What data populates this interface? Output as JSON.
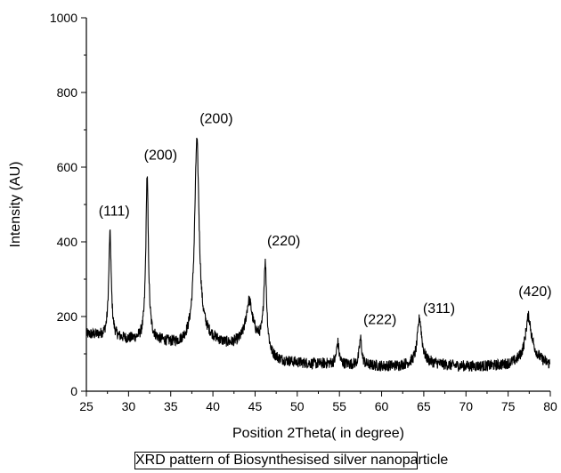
{
  "caption": "XRD pattern of  Biosynthesised silver nanoparticle",
  "chart_data": {
    "type": "line",
    "title": "",
    "xlabel": "Position 2Theta( in degree)",
    "ylabel": "Intensity (AU)",
    "xlim": [
      25,
      80
    ],
    "ylim": [
      0,
      1000
    ],
    "xticks": [
      25,
      30,
      35,
      40,
      45,
      50,
      55,
      60,
      65,
      70,
      75,
      80
    ],
    "yticks": [
      0,
      200,
      400,
      600,
      800,
      1000
    ],
    "grid": false,
    "legend": "none",
    "line_color": "#000000",
    "baseline": [
      [
        25,
        152
      ],
      [
        26,
        150
      ],
      [
        27,
        147
      ],
      [
        29,
        140
      ],
      [
        30,
        138
      ],
      [
        31,
        137
      ],
      [
        33,
        137
      ],
      [
        34,
        132
      ],
      [
        35,
        128
      ],
      [
        36,
        126
      ],
      [
        37,
        132
      ],
      [
        39,
        145
      ],
      [
        40,
        137
      ],
      [
        41,
        128
      ],
      [
        42,
        124
      ],
      [
        43,
        128
      ],
      [
        44,
        132
      ],
      [
        45,
        136
      ],
      [
        46,
        125
      ],
      [
        47,
        92
      ],
      [
        48,
        82
      ],
      [
        50,
        76
      ],
      [
        52,
        73
      ],
      [
        54,
        73
      ],
      [
        56,
        71
      ],
      [
        58,
        69
      ],
      [
        60,
        67
      ],
      [
        62,
        68
      ],
      [
        63,
        71
      ],
      [
        64,
        75
      ],
      [
        65,
        78
      ],
      [
        66,
        74
      ],
      [
        68,
        69
      ],
      [
        70,
        67
      ],
      [
        72,
        67
      ],
      [
        74,
        69
      ],
      [
        75,
        72
      ],
      [
        76,
        78
      ],
      [
        77,
        88
      ],
      [
        78,
        95
      ],
      [
        79,
        80
      ],
      [
        80,
        70
      ]
    ],
    "peaks": [
      {
        "x": 27.8,
        "y": 420,
        "width": 0.18
      },
      {
        "x": 32.2,
        "y": 575,
        "width": 0.18
      },
      {
        "x": 38.1,
        "y": 670,
        "width": 0.32
      },
      {
        "x": 44.3,
        "y": 240,
        "width": 0.45
      },
      {
        "x": 46.2,
        "y": 340,
        "width": 0.2
      },
      {
        "x": 54.8,
        "y": 130,
        "width": 0.18
      },
      {
        "x": 57.5,
        "y": 140,
        "width": 0.18
      },
      {
        "x": 64.5,
        "y": 195,
        "width": 0.3
      },
      {
        "x": 77.4,
        "y": 200,
        "width": 0.4
      }
    ],
    "annotations": [
      {
        "text": "(111)",
        "x": 28.3,
        "y": 470
      },
      {
        "text": "(200)",
        "x": 33.8,
        "y": 620
      },
      {
        "text": "(200)",
        "x": 40.4,
        "y": 718
      },
      {
        "text": "(220)",
        "x": 48.4,
        "y": 390
      },
      {
        "text": "(222)",
        "x": 59.8,
        "y": 180
      },
      {
        "text": "(311)",
        "x": 66.8,
        "y": 210
      },
      {
        "text": "(420)",
        "x": 78.2,
        "y": 255
      }
    ]
  }
}
